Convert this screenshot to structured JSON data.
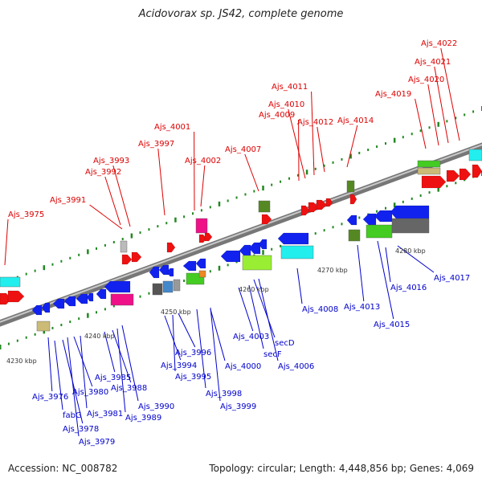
{
  "title": "Acidovorax sp. JS42, complete genome",
  "accession": "Accession: NC_008782",
  "stats": "Topology: circular; Length: 4,448,856 bp; Genes: 4,069",
  "colors": {
    "top_labels": "#dd0000",
    "bottom_labels": "#0000cc",
    "backbone": "#888888",
    "ticks": "#228822"
  },
  "scale_labels": [
    "4230 kbp",
    "4240 kbp",
    "4250 kbp",
    "4260 kbp",
    "4270 kbp",
    "4280 kbp"
  ],
  "top_genes": [
    "Ajs_3975",
    "Ajs_3991",
    "Ajs_3992",
    "Ajs_3993",
    "Ajs_3997",
    "Ajs_4001",
    "Ajs_4002",
    "Ajs_4007",
    "Ajs_4009",
    "Ajs_4010",
    "Ajs_4011",
    "Ajs_4012",
    "Ajs_4014",
    "Ajs_4019",
    "Ajs_4020",
    "Ajs_4021",
    "Ajs_4022"
  ],
  "bottom_genes": [
    "Ajs_3976",
    "fabG",
    "Ajs_3978",
    "Ajs_3979",
    "Ajs_3980",
    "Ajs_3981",
    "Ajs_3985",
    "Ajs_3988",
    "Ajs_3989",
    "Ajs_3990",
    "Ajs_3994",
    "Ajs_3995",
    "Ajs_3996",
    "Ajs_3998",
    "Ajs_3999",
    "Ajs_4000",
    "Ajs_4003",
    "secF",
    "secD",
    "Ajs_4006",
    "Ajs_4008",
    "Ajs_4013",
    "Ajs_4015",
    "Ajs_4016",
    "Ajs_4017"
  ]
}
